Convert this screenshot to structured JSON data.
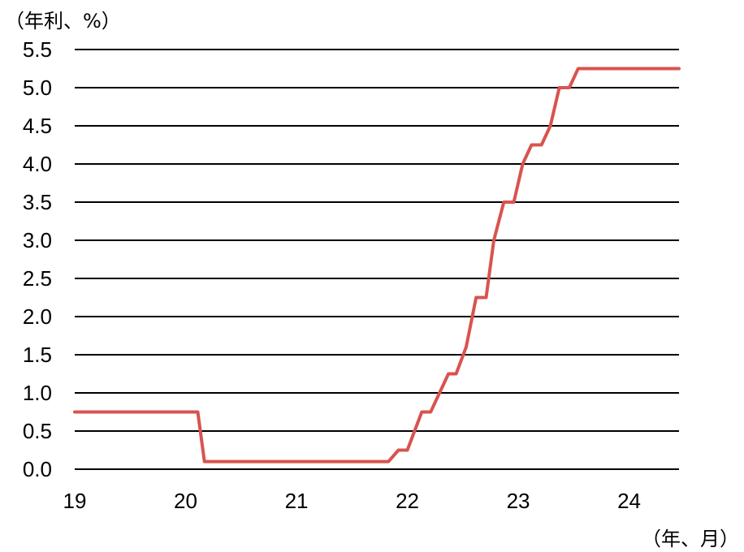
{
  "chart_data": {
    "type": "line",
    "y_unit_label": "（年利、%）",
    "x_unit_label": "（年、月）",
    "xlim": [
      2019.0,
      2024.45
    ],
    "ylim": [
      0,
      5.5
    ],
    "y_ticks": [
      "0.0",
      "0.5",
      "1.0",
      "1.5",
      "2.0",
      "2.5",
      "3.0",
      "3.5",
      "4.0",
      "4.5",
      "5.0",
      "5.5"
    ],
    "x_ticks": [
      {
        "x": 2019,
        "label": "19"
      },
      {
        "x": 2020,
        "label": "20"
      },
      {
        "x": 2021,
        "label": "21"
      },
      {
        "x": 2022,
        "label": "22"
      },
      {
        "x": 2023,
        "label": "23"
      },
      {
        "x": 2024,
        "label": "24"
      }
    ],
    "grid": true,
    "series": [
      {
        "color": "#d9534f",
        "x": [
          2019.0,
          2020.11,
          2020.17,
          2021.83,
          2021.92,
          2022.0,
          2022.13,
          2022.21,
          2022.37,
          2022.44,
          2022.53,
          2022.62,
          2022.71,
          2022.78,
          2022.87,
          2022.96,
          2023.04,
          2023.12,
          2023.21,
          2023.29,
          2023.37,
          2023.46,
          2023.54,
          2024.45
        ],
        "y": [
          0.75,
          0.75,
          0.1,
          0.1,
          0.25,
          0.25,
          0.75,
          0.75,
          1.25,
          1.25,
          1.6,
          2.25,
          2.25,
          3.0,
          3.5,
          3.5,
          4.0,
          4.25,
          4.25,
          4.5,
          5.0,
          5.0,
          5.25,
          5.25
        ]
      }
    ]
  }
}
